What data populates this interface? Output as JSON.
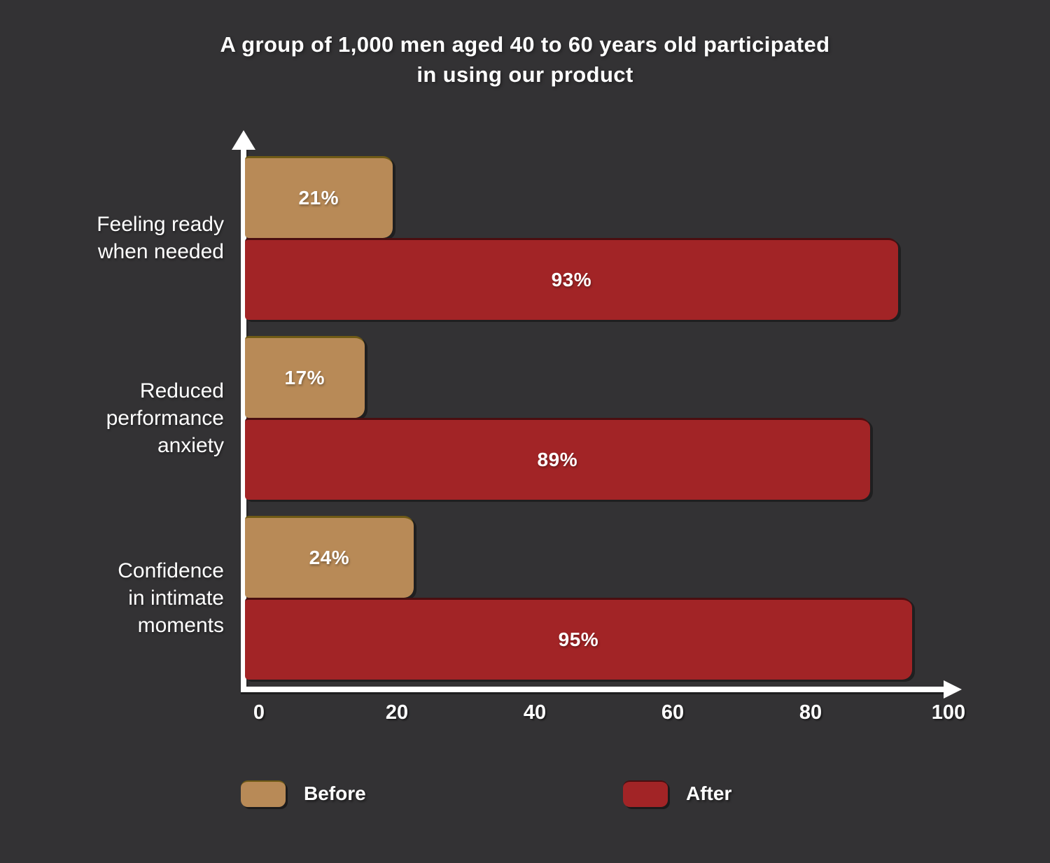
{
  "background_color": "#333234",
  "text_color": "#ffffff",
  "header": {
    "title_lines": [
      "A group of 1,000 men aged 40 to 60 years old participated",
      "in using our product"
    ]
  },
  "chart_data": {
    "type": "bar",
    "orientation": "horizontal",
    "title": "A group of 1,000 men aged 40 to 60 years old participated in using our product",
    "categories": [
      "Feeling ready when needed",
      "Reduced performance anxiety",
      "Confidence in intimate moments"
    ],
    "categories_lines": [
      [
        "Feeling ready",
        "when needed"
      ],
      [
        "Reduced",
        "performance",
        "anxiety"
      ],
      [
        "Confidence",
        "in intimate",
        "moments"
      ]
    ],
    "series": [
      {
        "name": "Before",
        "color": "#b88a57",
        "edge_color": "#6f5a16",
        "values": [
          21,
          17,
          24
        ],
        "value_labels": [
          "21%",
          "17%",
          "24%"
        ]
      },
      {
        "name": "After",
        "color": "#a22426",
        "edge_color": "#4a0e10",
        "values": [
          93,
          89,
          95
        ],
        "value_labels": [
          "93%",
          "89%",
          "95%"
        ]
      }
    ],
    "value_suffix": "%",
    "x_ticks": [
      "0",
      "20",
      "40",
      "60",
      "80",
      "100"
    ],
    "xlim": [
      0,
      100
    ],
    "axis_color": "#ffffff",
    "grid": false,
    "legend_position": "bottom"
  }
}
